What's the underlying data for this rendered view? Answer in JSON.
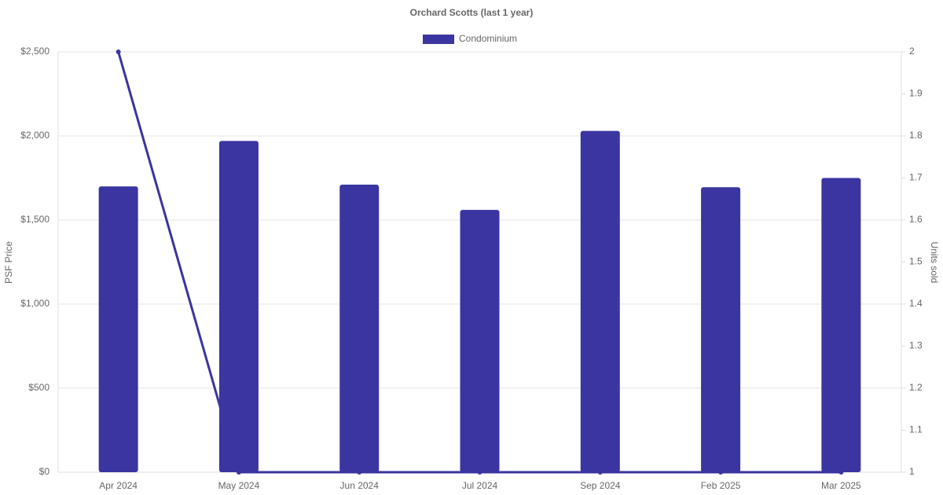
{
  "chart_data": {
    "type": "bar",
    "title": "Orchard Scotts (last 1 year)",
    "categories": [
      "Apr 2024",
      "May 2024",
      "Jun 2024",
      "Jul 2024",
      "Sep 2024",
      "Feb 2025",
      "Mar 2025"
    ],
    "series": [
      {
        "name": "Condominium",
        "color": "#3a35a0",
        "values": [
          1700,
          1970,
          1710,
          1560,
          2030,
          1695,
          1750
        ]
      },
      {
        "type": "line",
        "axis": "y2",
        "color": "#3a35a0",
        "values": [
          2,
          1,
          1,
          1,
          1,
          1,
          1
        ]
      }
    ],
    "ylabel": "PSF Price",
    "y2label": "Units sold",
    "ylim": [
      0,
      2500
    ],
    "yticks": [
      {
        "value": 0,
        "label": "$0"
      },
      {
        "value": 500,
        "label": "$500"
      },
      {
        "value": 1000,
        "label": "$1,000"
      },
      {
        "value": 1500,
        "label": "$1,500"
      },
      {
        "value": 2000,
        "label": "$2,000"
      },
      {
        "value": 2500,
        "label": "$2,500"
      }
    ],
    "y2lim": [
      1,
      2
    ],
    "y2ticks": [
      1,
      1.1,
      1.2,
      1.3,
      1.4,
      1.5,
      1.6,
      1.7,
      1.8,
      1.9,
      2
    ],
    "grid": true,
    "legend": "top"
  }
}
